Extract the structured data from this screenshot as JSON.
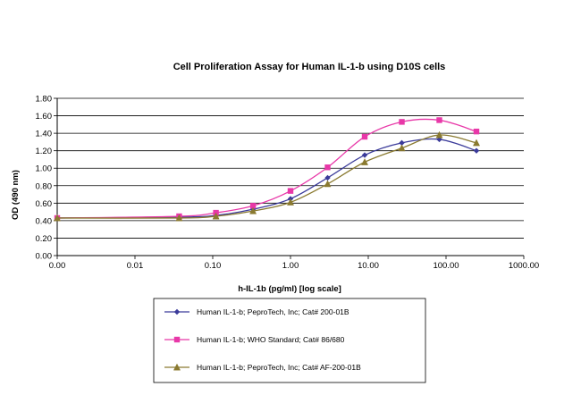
{
  "chart_data": {
    "type": "line",
    "title": "Cell Proliferation Assay for Human IL-1-b using D10S cells",
    "xlabel": "h-IL-1b (pg/ml) [log scale]",
    "ylabel": "OD (490 nm)",
    "x_scale": "log",
    "x_tick_labels": [
      "0.00",
      "0.01",
      "0.10",
      "1.00",
      "10.00",
      "100.00",
      "1000.00"
    ],
    "x_tick_values": [
      0.001,
      0.01,
      0.1,
      1,
      10,
      100,
      1000
    ],
    "y_tick_labels": [
      "0.00",
      "0.20",
      "0.40",
      "0.60",
      "0.80",
      "1.00",
      "1.20",
      "1.40",
      "1.60",
      "1.80"
    ],
    "ylim": [
      0,
      1.8
    ],
    "grid": "horizontal",
    "legend_position": "bottom",
    "series": [
      {
        "name": "Human IL-1-b; PeproTech, Inc; Cat# 200-01B",
        "color": "#3b3b9a",
        "marker": "diamond",
        "x": [
          0.001,
          0.037,
          0.11,
          0.33,
          1.0,
          3.0,
          9.0,
          27.0,
          82.0,
          246.0
        ],
        "y": [
          0.43,
          0.44,
          0.46,
          0.53,
          0.65,
          0.89,
          1.15,
          1.29,
          1.33,
          1.2
        ]
      },
      {
        "name": "Human IL-1-b; WHO Standard; Cat# 86/680",
        "color": "#e838a8",
        "marker": "square",
        "x": [
          0.001,
          0.037,
          0.11,
          0.33,
          1.0,
          3.0,
          9.0,
          27.0,
          82.0,
          246.0
        ],
        "y": [
          0.43,
          0.45,
          0.49,
          0.57,
          0.74,
          1.01,
          1.36,
          1.53,
          1.55,
          1.42
        ]
      },
      {
        "name": "Human IL-1-b; PeproTech, Inc; Cat# AF-200-01B",
        "color": "#8a7a30",
        "marker": "triangle",
        "x": [
          0.001,
          0.037,
          0.11,
          0.33,
          1.0,
          3.0,
          9.0,
          27.0,
          82.0,
          246.0
        ],
        "y": [
          0.43,
          0.43,
          0.45,
          0.51,
          0.61,
          0.82,
          1.07,
          1.23,
          1.38,
          1.29
        ]
      }
    ]
  }
}
